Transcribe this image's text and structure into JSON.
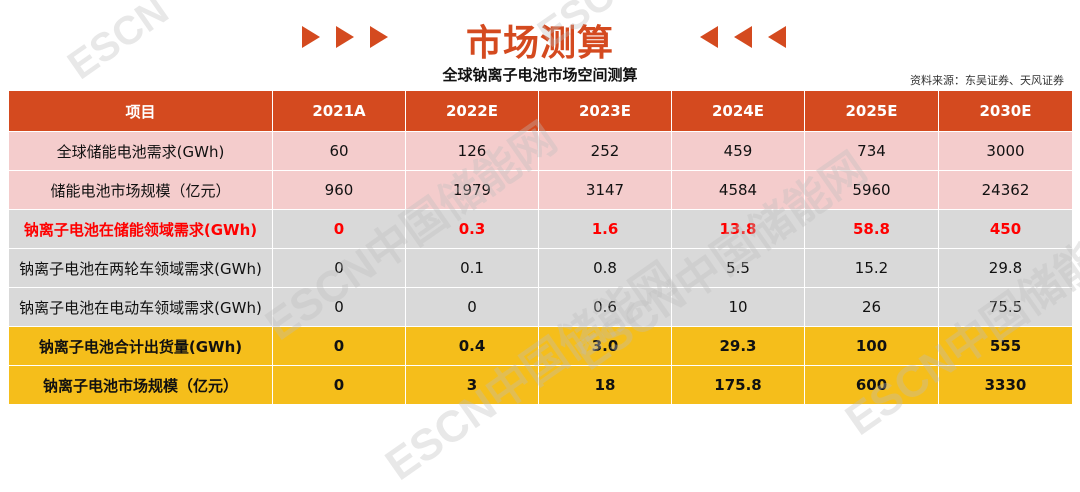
{
  "header": {
    "title": "市场测算",
    "subtitle": "全球钠离子电池市场空间测算",
    "source": "资料来源：东吴证券、天风证券"
  },
  "watermarks": [
    "ESCN",
    "ESCN",
    "ESCN中国储能网",
    "ESCN中国储能网",
    "ESCN中国储能网",
    "ESCN中国储能网"
  ],
  "table": {
    "columns": [
      "项目",
      "2021A",
      "2022E",
      "2023E",
      "2024E",
      "2025E",
      "2030E"
    ],
    "rows": [
      {
        "label": "全球储能电池需求(GWh)",
        "values": [
          "60",
          "126",
          "252",
          "459",
          "734",
          "3000"
        ]
      },
      {
        "label": "储能电池市场规模（亿元）",
        "values": [
          "960",
          "1979",
          "3147",
          "4584",
          "5960",
          "24362"
        ]
      },
      {
        "label": "钠离子电池在储能领域需求(GWh)",
        "values": [
          "0",
          "0.3",
          "1.6",
          "13.8",
          "58.8",
          "450"
        ]
      },
      {
        "label": "钠离子电池在两轮车领域需求(GWh)",
        "values": [
          "0",
          "0.1",
          "0.8",
          "5.5",
          "15.2",
          "29.8"
        ]
      },
      {
        "label": "钠离子电池在电动车领域需求(GWh)",
        "values": [
          "0",
          "0",
          "0.6",
          "10",
          "26",
          "75.5"
        ]
      },
      {
        "label": "钠离子电池合计出货量(GWh)",
        "values": [
          "0",
          "0.4",
          "3.0",
          "29.3",
          "100",
          "555"
        ]
      },
      {
        "label": "钠离子电池市场规模（亿元）",
        "values": [
          "0",
          "3",
          "18",
          "175.8",
          "600",
          "3330"
        ]
      }
    ]
  },
  "colors": {
    "accent": "#d44a1f",
    "pink_row": "#f4cccc",
    "gray_row": "#d9d9d9",
    "gold_row": "#f5be1b",
    "highlight_text": "#ff0000"
  }
}
